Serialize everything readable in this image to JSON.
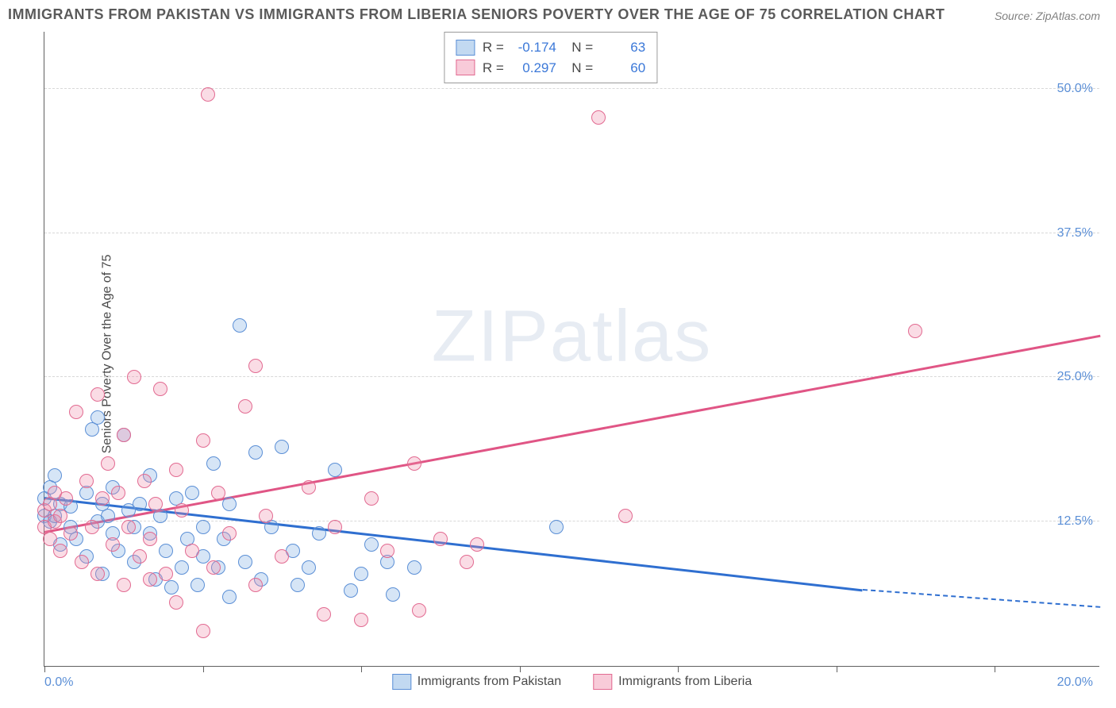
{
  "title": "IMMIGRANTS FROM PAKISTAN VS IMMIGRANTS FROM LIBERIA SENIORS POVERTY OVER THE AGE OF 75 CORRELATION CHART",
  "source": "Source: ZipAtlas.com",
  "ylabel": "Seniors Poverty Over the Age of 75",
  "watermark_a": "ZIP",
  "watermark_b": "atlas",
  "chart": {
    "type": "scatter",
    "xlim": [
      0,
      20
    ],
    "ylim": [
      0,
      55
    ],
    "xticks_pct": [
      0,
      15,
      30,
      45,
      60,
      75,
      90
    ],
    "x_label_min": "0.0%",
    "x_label_max": "20.0%",
    "y_gridlines": [
      12.5,
      25.0,
      37.5,
      50.0
    ],
    "y_tick_labels": [
      "12.5%",
      "25.0%",
      "37.5%",
      "50.0%"
    ],
    "background_color": "#ffffff",
    "grid_color": "#d8d8d8",
    "axis_color": "#606060",
    "tick_label_color": "#5b8fd6",
    "marker_radius": 9,
    "marker_stroke": 1.5,
    "series": [
      {
        "key": "pakistan",
        "label": "Immigrants from Pakistan",
        "fill": "rgba(120,170,225,0.30)",
        "stroke": "#5b8fd6",
        "line_color": "#2f6fd0",
        "R": "-0.174",
        "N": "63",
        "trend": {
          "x1": 0.0,
          "y1": 14.5,
          "x2": 15.5,
          "y2": 6.5,
          "dash_to_x": 20.0,
          "dash_to_y": 5.0
        },
        "points": [
          [
            0.0,
            14.5
          ],
          [
            0.0,
            13.0
          ],
          [
            0.1,
            15.5
          ],
          [
            0.1,
            12.5
          ],
          [
            0.2,
            13.0
          ],
          [
            0.2,
            16.5
          ],
          [
            0.3,
            14.0
          ],
          [
            0.3,
            10.5
          ],
          [
            0.5,
            12.0
          ],
          [
            0.5,
            13.8
          ],
          [
            0.6,
            11.0
          ],
          [
            0.8,
            15.0
          ],
          [
            0.8,
            9.5
          ],
          [
            0.9,
            20.5
          ],
          [
            1.0,
            21.5
          ],
          [
            1.0,
            12.5
          ],
          [
            1.1,
            14.0
          ],
          [
            1.1,
            8.0
          ],
          [
            1.2,
            13.0
          ],
          [
            1.3,
            11.5
          ],
          [
            1.3,
            15.5
          ],
          [
            1.4,
            10.0
          ],
          [
            1.5,
            20.0
          ],
          [
            1.6,
            13.5
          ],
          [
            1.7,
            9.0
          ],
          [
            1.7,
            12.0
          ],
          [
            1.8,
            14.0
          ],
          [
            2.0,
            11.5
          ],
          [
            2.0,
            16.5
          ],
          [
            2.1,
            7.5
          ],
          [
            2.2,
            13.0
          ],
          [
            2.3,
            10.0
          ],
          [
            2.4,
            6.8
          ],
          [
            2.5,
            14.5
          ],
          [
            2.6,
            8.5
          ],
          [
            2.7,
            11.0
          ],
          [
            2.8,
            15.0
          ],
          [
            2.9,
            7.0
          ],
          [
            3.0,
            12.0
          ],
          [
            3.0,
            9.5
          ],
          [
            3.2,
            17.5
          ],
          [
            3.3,
            8.5
          ],
          [
            3.4,
            11.0
          ],
          [
            3.5,
            6.0
          ],
          [
            3.5,
            14.0
          ],
          [
            3.7,
            29.5
          ],
          [
            3.8,
            9.0
          ],
          [
            4.0,
            18.5
          ],
          [
            4.1,
            7.5
          ],
          [
            4.3,
            12.0
          ],
          [
            4.5,
            19.0
          ],
          [
            4.7,
            10.0
          ],
          [
            4.8,
            7.0
          ],
          [
            5.0,
            8.5
          ],
          [
            5.2,
            11.5
          ],
          [
            5.5,
            17.0
          ],
          [
            5.8,
            6.5
          ],
          [
            6.0,
            8.0
          ],
          [
            6.2,
            10.5
          ],
          [
            6.5,
            9.0
          ],
          [
            6.6,
            6.2
          ],
          [
            7.0,
            8.5
          ],
          [
            9.7,
            12.0
          ]
        ]
      },
      {
        "key": "liberia",
        "label": "Immigrants from Liberia",
        "fill": "rgba(240,140,170,0.30)",
        "stroke": "#e26a91",
        "line_color": "#e05585",
        "R": "0.297",
        "N": "60",
        "trend": {
          "x1": 0.0,
          "y1": 11.5,
          "x2": 20.0,
          "y2": 28.5
        },
        "points": [
          [
            0.0,
            13.5
          ],
          [
            0.0,
            12.0
          ],
          [
            0.1,
            14.0
          ],
          [
            0.1,
            11.0
          ],
          [
            0.2,
            15.0
          ],
          [
            0.2,
            12.5
          ],
          [
            0.3,
            13.0
          ],
          [
            0.3,
            10.0
          ],
          [
            0.4,
            14.5
          ],
          [
            0.5,
            11.5
          ],
          [
            0.6,
            22.0
          ],
          [
            0.7,
            9.0
          ],
          [
            0.8,
            16.0
          ],
          [
            0.9,
            12.0
          ],
          [
            1.0,
            23.5
          ],
          [
            1.0,
            8.0
          ],
          [
            1.1,
            14.5
          ],
          [
            1.2,
            17.5
          ],
          [
            1.3,
            10.5
          ],
          [
            1.4,
            15.0
          ],
          [
            1.5,
            7.0
          ],
          [
            1.5,
            20.0
          ],
          [
            1.6,
            12.0
          ],
          [
            1.7,
            25.0
          ],
          [
            1.8,
            9.5
          ],
          [
            1.9,
            16.0
          ],
          [
            2.0,
            11.0
          ],
          [
            2.0,
            7.5
          ],
          [
            2.1,
            14.0
          ],
          [
            2.2,
            24.0
          ],
          [
            2.3,
            8.0
          ],
          [
            2.5,
            17.0
          ],
          [
            2.5,
            5.5
          ],
          [
            2.6,
            13.5
          ],
          [
            2.8,
            10.0
          ],
          [
            3.0,
            19.5
          ],
          [
            3.0,
            3.0
          ],
          [
            3.1,
            49.5
          ],
          [
            3.2,
            8.5
          ],
          [
            3.3,
            15.0
          ],
          [
            3.5,
            11.5
          ],
          [
            3.8,
            22.5
          ],
          [
            4.0,
            7.0
          ],
          [
            4.0,
            26.0
          ],
          [
            4.2,
            13.0
          ],
          [
            4.5,
            9.5
          ],
          [
            5.0,
            15.5
          ],
          [
            5.3,
            4.5
          ],
          [
            5.5,
            12.0
          ],
          [
            6.0,
            4.0
          ],
          [
            6.2,
            14.5
          ],
          [
            6.5,
            10.0
          ],
          [
            7.0,
            17.5
          ],
          [
            7.1,
            4.8
          ],
          [
            7.5,
            11.0
          ],
          [
            8.0,
            9.0
          ],
          [
            8.2,
            10.5
          ],
          [
            10.5,
            47.5
          ],
          [
            11.0,
            13.0
          ],
          [
            16.5,
            29.0
          ]
        ]
      }
    ]
  },
  "legend_bottom": [
    {
      "label": "Immigrants from Pakistan",
      "fill": "rgba(120,170,225,0.45)",
      "stroke": "#5b8fd6"
    },
    {
      "label": "Immigrants from Liberia",
      "fill": "rgba(240,140,170,0.45)",
      "stroke": "#e26a91"
    }
  ]
}
